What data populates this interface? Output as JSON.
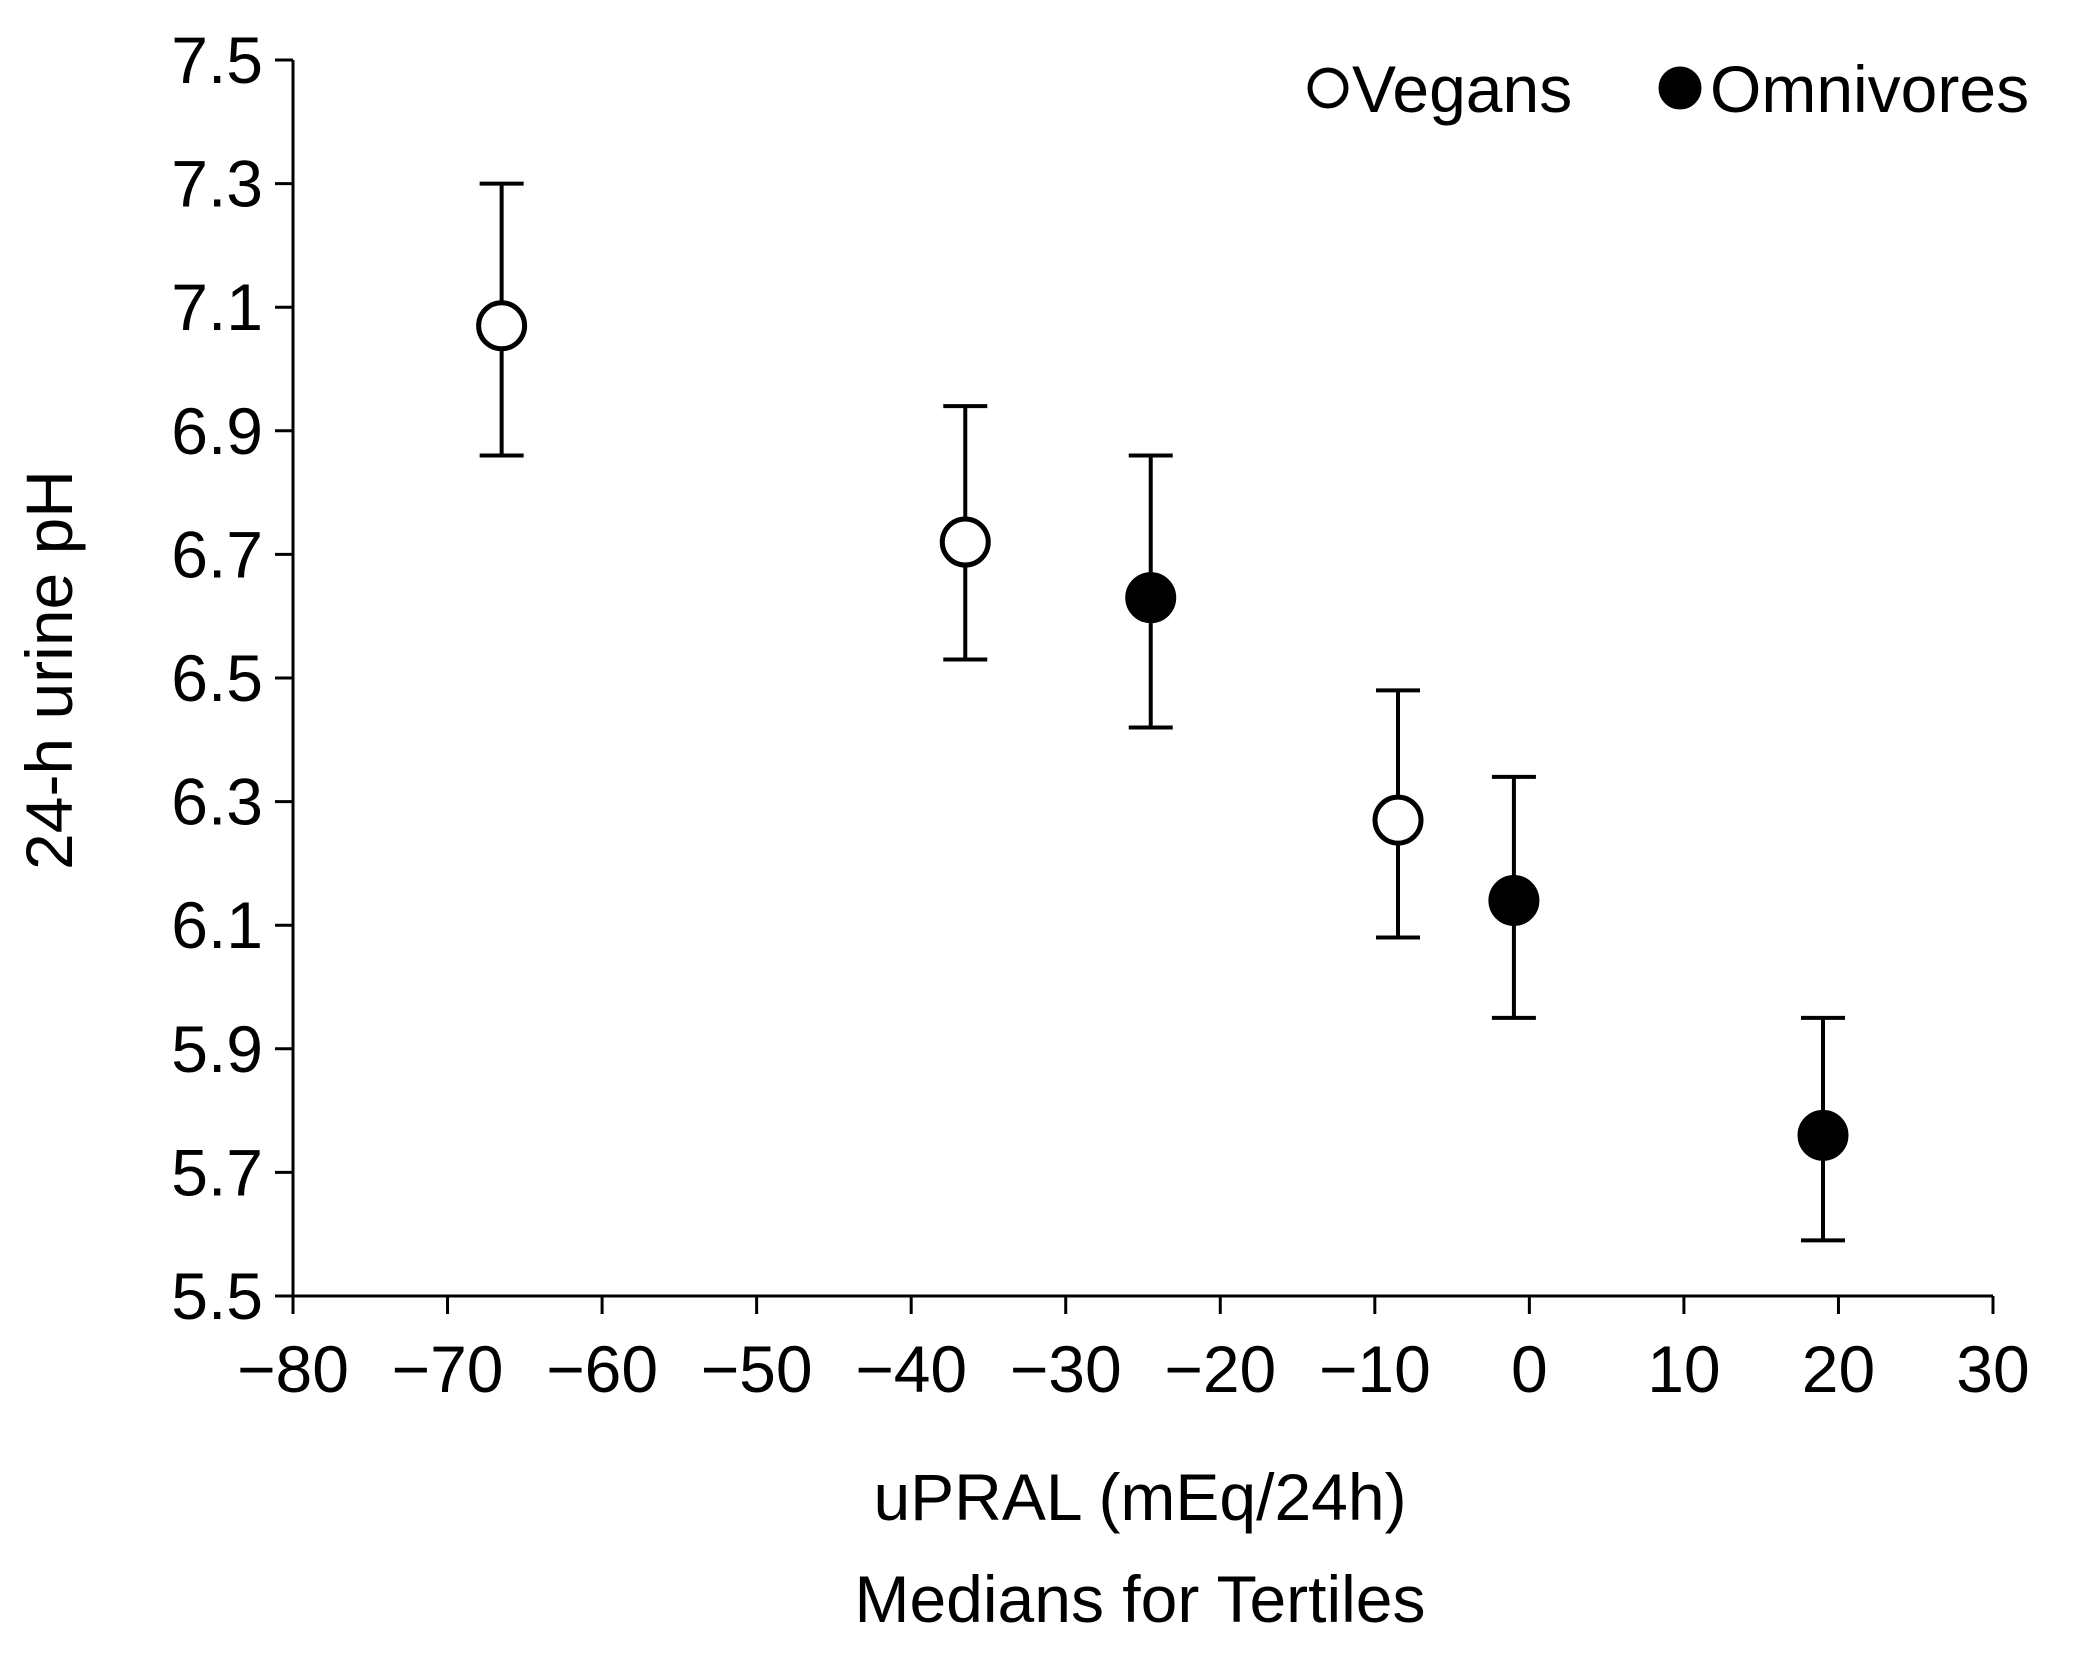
{
  "chart_data": {
    "type": "scatter",
    "xlabel": "uPRAL (mEq/24h)",
    "xlabel_line2": "Medians for Tertiles",
    "ylabel": "24-h urine pH",
    "xlim": [
      -80,
      30
    ],
    "ylim": [
      5.5,
      7.5
    ],
    "x_ticks": [
      -80,
      -70,
      -60,
      -50,
      -40,
      -30,
      -20,
      -10,
      0,
      10,
      20,
      30
    ],
    "x_tick_labels": [
      "−80",
      "−70",
      "−60",
      "−50",
      "−40",
      "−30",
      "−20",
      "−10",
      "0",
      "10",
      "20",
      "30"
    ],
    "y_ticks": [
      5.5,
      5.7,
      5.9,
      6.1,
      6.3,
      6.5,
      6.7,
      6.9,
      7.1,
      7.3,
      7.5
    ],
    "y_tick_labels": [
      "5.5",
      "5.7",
      "5.9",
      "6.1",
      "6.3",
      "6.5",
      "6.7",
      "6.9",
      "7.1",
      "7.3",
      "7.5"
    ],
    "grid": false,
    "legend_position": "top-right",
    "series": [
      {
        "name": "Vegans",
        "marker": "open-circle",
        "points": [
          {
            "x": -66.5,
            "y": 7.07,
            "err_low": 6.86,
            "err_high": 7.3
          },
          {
            "x": -36.5,
            "y": 6.72,
            "err_low": 6.53,
            "err_high": 6.94
          },
          {
            "x": -8.5,
            "y": 6.27,
            "err_low": 6.08,
            "err_high": 6.48
          }
        ]
      },
      {
        "name": "Omnivores",
        "marker": "filled-circle",
        "points": [
          {
            "x": -24.5,
            "y": 6.63,
            "err_low": 6.42,
            "err_high": 6.86
          },
          {
            "x": -1.0,
            "y": 6.14,
            "err_low": 5.95,
            "err_high": 6.34
          },
          {
            "x": 19.0,
            "y": 5.76,
            "err_low": 5.59,
            "err_high": 5.95
          }
        ]
      }
    ]
  },
  "colors": {
    "axis": "#000000",
    "marker_fill_open": "#ffffff",
    "marker_fill_solid": "#000000"
  }
}
